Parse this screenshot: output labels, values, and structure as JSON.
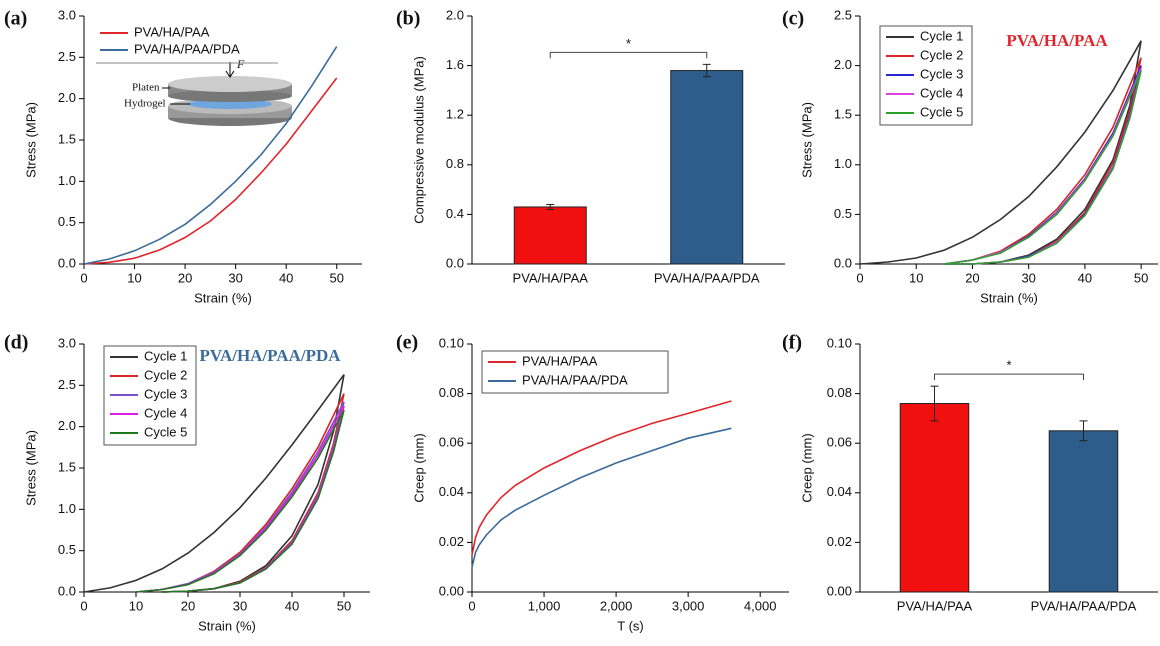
{
  "chart_data": [
    {
      "type": "line",
      "panel_label": "(a)",
      "x_label": "Strain (%)",
      "y_label": "Stress (MPa)",
      "xlim": [
        0,
        55
      ],
      "ylim": [
        0,
        3
      ],
      "xticks": [
        0,
        10,
        20,
        30,
        40,
        50
      ],
      "yticks": [
        {
          "value": 0,
          "label": "0.0"
        },
        0.5,
        {
          "value": 1,
          "label": "1.0"
        },
        1.5,
        {
          "value": 2,
          "label": "2.0"
        },
        2.5,
        {
          "value": 3,
          "label": "3.0"
        }
      ],
      "legend": "upper left",
      "x": [
        0,
        5,
        10,
        15,
        20,
        25,
        30,
        35,
        40,
        45,
        50
      ],
      "series": [
        {
          "name": "PVA/HA/PAA",
          "color": "#e0262b",
          "values": [
            0,
            0.02,
            0.07,
            0.17,
            0.32,
            0.52,
            0.78,
            1.1,
            1.45,
            1.85,
            2.25
          ]
        },
        {
          "name": "PVA/HA/PAA/PDA",
          "color": "#3a6b9a",
          "values": [
            0,
            0.06,
            0.16,
            0.3,
            0.48,
            0.72,
            1.0,
            1.32,
            1.7,
            2.15,
            2.63
          ]
        }
      ],
      "annotations": [
        "F",
        "Platen",
        "Hydrogel"
      ]
    },
    {
      "type": "bar",
      "panel_label": "(b)",
      "y_label": "Compressive modulus (MPa)",
      "ylim": [
        0,
        2
      ],
      "yticks": [
        {
          "value": 0,
          "label": "0.0"
        },
        0.4,
        0.8,
        1.2,
        1.6,
        {
          "value": 2,
          "label": "2.0"
        }
      ],
      "categories": [
        "PVA/HA/PAA",
        "PVA/HA/PAA/PDA"
      ],
      "values": [
        0.46,
        1.56
      ],
      "errors": [
        0.02,
        0.05
      ],
      "colors": [
        "#f01010",
        "#2e5d8c"
      ],
      "significance": "*"
    },
    {
      "type": "line",
      "panel_label": "(c)",
      "title": "PVA/HA/PAA",
      "title_color": "#e0262b",
      "x_label": "Strain (%)",
      "y_label": "Stress (MPa)",
      "xlim": [
        0,
        53
      ],
      "ylim": [
        0,
        2.5
      ],
      "xticks": [
        0,
        10,
        20,
        30,
        40,
        50
      ],
      "yticks": [
        {
          "value": 0,
          "label": "0.0"
        },
        0.5,
        {
          "value": 1,
          "label": "1.0"
        },
        1.5,
        {
          "value": 2,
          "label": "2.0"
        },
        2.5
      ],
      "legend": "upper left",
      "series": [
        {
          "name": "Cycle 1",
          "color": "#333333",
          "x": [
            0,
            5,
            10,
            15,
            20,
            25,
            30,
            35,
            40,
            45,
            50,
            48,
            45,
            40,
            35,
            30,
            25,
            20
          ],
          "values": [
            0,
            0.02,
            0.06,
            0.14,
            0.27,
            0.45,
            0.68,
            0.98,
            1.33,
            1.75,
            2.25,
            1.6,
            1.05,
            0.55,
            0.25,
            0.09,
            0.02,
            0
          ]
        },
        {
          "name": "Cycle 2",
          "color": "#d62728",
          "x": [
            15,
            20,
            25,
            30,
            35,
            40,
            45,
            50,
            48,
            45,
            40,
            35,
            30,
            25,
            20,
            15
          ],
          "values": [
            0,
            0.04,
            0.13,
            0.3,
            0.55,
            0.9,
            1.38,
            2.08,
            1.55,
            1.02,
            0.52,
            0.23,
            0.08,
            0.02,
            0,
            0
          ]
        },
        {
          "name": "Cycle 3",
          "color": "#2424d0",
          "x": [
            15,
            20,
            25,
            30,
            35,
            40,
            45,
            50,
            48,
            45,
            40,
            35,
            30,
            25,
            20,
            15
          ],
          "values": [
            0,
            0.04,
            0.12,
            0.28,
            0.52,
            0.86,
            1.32,
            2.0,
            1.5,
            0.98,
            0.5,
            0.22,
            0.08,
            0.02,
            0,
            0
          ]
        },
        {
          "name": "Cycle 4",
          "color": "#e040e0",
          "x": [
            15,
            20,
            25,
            30,
            35,
            40,
            45,
            50,
            48,
            45,
            40,
            35,
            30,
            25,
            20,
            15
          ],
          "values": [
            0,
            0.04,
            0.12,
            0.27,
            0.51,
            0.85,
            1.3,
            1.97,
            1.48,
            0.97,
            0.49,
            0.22,
            0.07,
            0.02,
            0,
            0
          ]
        },
        {
          "name": "Cycle 5",
          "color": "#2ca02c",
          "x": [
            15,
            20,
            25,
            30,
            35,
            40,
            45,
            50,
            48,
            45,
            40,
            35,
            30,
            25,
            20,
            15
          ],
          "values": [
            0,
            0.04,
            0.11,
            0.27,
            0.5,
            0.84,
            1.29,
            1.95,
            1.47,
            0.96,
            0.49,
            0.21,
            0.07,
            0.02,
            0,
            0
          ]
        }
      ]
    },
    {
      "type": "line",
      "panel_label": "(d)",
      "title": "PVA/HA/PAA/PDA",
      "title_color": "#3a6b9a",
      "x_label": "Strain (%)",
      "y_label": "Stress (MPa)",
      "xlim": [
        0,
        55
      ],
      "ylim": [
        0,
        3
      ],
      "xticks": [
        0,
        10,
        20,
        30,
        40,
        50
      ],
      "yticks": [
        {
          "value": 0,
          "label": "0.0"
        },
        0.5,
        {
          "value": 1,
          "label": "1.0"
        },
        1.5,
        {
          "value": 2,
          "label": "2.0"
        },
        2.5,
        {
          "value": 3,
          "label": "3.0"
        }
      ],
      "legend": "upper left",
      "series": [
        {
          "name": "Cycle 1",
          "color": "#333333",
          "x": [
            0,
            5,
            10,
            15,
            20,
            25,
            30,
            35,
            40,
            45,
            50,
            48,
            45,
            40,
            35,
            30,
            25,
            20,
            15
          ],
          "values": [
            0,
            0.05,
            0.14,
            0.28,
            0.47,
            0.72,
            1.02,
            1.38,
            1.78,
            2.2,
            2.63,
            1.95,
            1.3,
            0.68,
            0.32,
            0.13,
            0.04,
            0.01,
            0
          ]
        },
        {
          "name": "Cycle 2",
          "color": "#d62728",
          "x": [
            10,
            15,
            20,
            25,
            30,
            35,
            40,
            45,
            50,
            48,
            45,
            40,
            35,
            30,
            25,
            20,
            15
          ],
          "values": [
            0,
            0.03,
            0.1,
            0.25,
            0.48,
            0.82,
            1.25,
            1.75,
            2.4,
            1.8,
            1.2,
            0.62,
            0.3,
            0.12,
            0.04,
            0.01,
            0
          ]
        },
        {
          "name": "Cycle 3",
          "color": "#7a4fd0",
          "x": [
            10,
            15,
            20,
            25,
            30,
            35,
            40,
            45,
            50,
            48,
            45,
            40,
            35,
            30,
            25,
            20,
            15
          ],
          "values": [
            0,
            0.03,
            0.1,
            0.24,
            0.46,
            0.79,
            1.21,
            1.7,
            2.3,
            1.75,
            1.17,
            0.6,
            0.29,
            0.11,
            0.04,
            0.01,
            0
          ]
        },
        {
          "name": "Cycle 4",
          "color": "#e020e0",
          "x": [
            10,
            15,
            20,
            25,
            30,
            35,
            40,
            45,
            50,
            48,
            45,
            40,
            35,
            30,
            25,
            20,
            15
          ],
          "values": [
            0,
            0.03,
            0.09,
            0.23,
            0.45,
            0.77,
            1.18,
            1.66,
            2.25,
            1.72,
            1.15,
            0.59,
            0.28,
            0.11,
            0.04,
            0.01,
            0
          ]
        },
        {
          "name": "Cycle 5",
          "color": "#1e7a1e",
          "x": [
            10,
            15,
            20,
            25,
            30,
            35,
            40,
            45,
            50,
            48,
            45,
            40,
            35,
            30,
            25,
            20,
            15
          ],
          "values": [
            0,
            0.03,
            0.09,
            0.22,
            0.44,
            0.75,
            1.15,
            1.62,
            2.2,
            1.7,
            1.13,
            0.58,
            0.28,
            0.11,
            0.04,
            0.01,
            0
          ]
        }
      ]
    },
    {
      "type": "line",
      "panel_label": "(e)",
      "x_label": "T (s)",
      "y_label": "Creep (mm)",
      "xlim": [
        0,
        4400
      ],
      "ylim": [
        0,
        0.1
      ],
      "xticks": [
        0,
        {
          "value": 1000,
          "label": "1,000"
        },
        {
          "value": 2000,
          "label": "2,000"
        },
        {
          "value": 3000,
          "label": "3,000"
        },
        {
          "value": 4000,
          "label": "4,000"
        }
      ],
      "yticks": [
        {
          "value": 0,
          "label": "0.00"
        },
        0.02,
        0.04,
        0.06,
        0.08,
        {
          "value": 0.1,
          "label": "0.10"
        }
      ],
      "legend": "upper left",
      "x": [
        0,
        50,
        100,
        200,
        400,
        600,
        1000,
        1500,
        2000,
        2500,
        3000,
        3600
      ],
      "series": [
        {
          "name": "PVA/HA/PAA",
          "color": "#e0262b",
          "values": [
            0.015,
            0.022,
            0.026,
            0.031,
            0.038,
            0.043,
            0.05,
            0.057,
            0.063,
            0.068,
            0.072,
            0.077
          ]
        },
        {
          "name": "PVA/HA/PAA/PDA",
          "color": "#3a6b9a",
          "values": [
            0.01,
            0.016,
            0.019,
            0.023,
            0.029,
            0.033,
            0.039,
            0.046,
            0.052,
            0.057,
            0.062,
            0.066
          ]
        }
      ]
    },
    {
      "type": "bar",
      "panel_label": "(f)",
      "y_label": "Creep (mm)",
      "ylim": [
        0,
        0.1
      ],
      "yticks": [
        {
          "value": 0,
          "label": "0.00"
        },
        0.02,
        0.04,
        0.06,
        0.08,
        {
          "value": 0.1,
          "label": "0.10"
        }
      ],
      "categories": [
        "PVA/HA/PAA",
        "PVA/HA/PAA/PDA"
      ],
      "values": [
        0.076,
        0.065
      ],
      "errors": [
        0.007,
        0.004
      ],
      "colors": [
        "#f01010",
        "#2e5d8c"
      ],
      "significance": "*"
    }
  ]
}
